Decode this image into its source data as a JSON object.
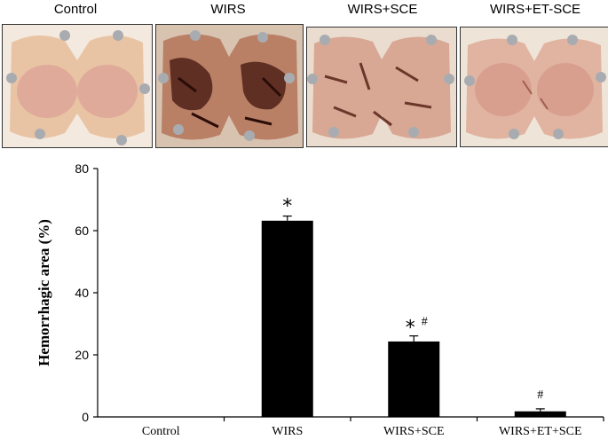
{
  "photos": [
    {
      "label": "Control",
      "style": "control"
    },
    {
      "label": "WIRS",
      "style": "wirs"
    },
    {
      "label": "WIRS+SCE",
      "style": "sce"
    },
    {
      "label": "WIRS+ET-SCE",
      "style": "etsce"
    }
  ],
  "colors": {
    "tissue_base": "#e4bb9c",
    "tissue_pink": "#d79a92",
    "lesion": "#4a1a14",
    "bar": "#000000",
    "pin": "#9aa0a6"
  },
  "chart_data": {
    "type": "bar",
    "categories": [
      "Control",
      "WIRS",
      "WIRS+SCE",
      "WIRS+ET+SCE"
    ],
    "values": [
      0,
      63.2,
      24.3,
      1.8
    ],
    "errors": [
      0,
      1.5,
      1.8,
      0.8
    ],
    "annotations": [
      "",
      "*",
      "* #",
      "#"
    ],
    "xlabel": "",
    "ylabel": "Hemorrhagic area (%)",
    "ylim": [
      0,
      80
    ],
    "yticks": [
      0,
      20,
      40,
      60,
      80
    ],
    "grid": false,
    "legend": "none"
  }
}
